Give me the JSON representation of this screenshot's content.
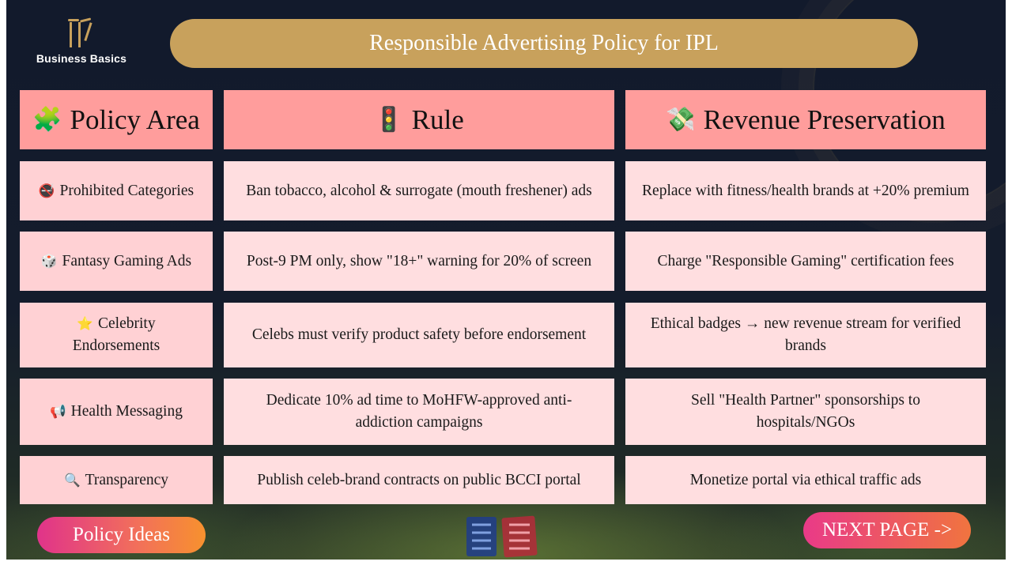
{
  "brand": {
    "name": "Business Basics",
    "icon": "cricket-stumps-logo",
    "color": "#c8a15c"
  },
  "title": "Responsible Advertising Policy for IPL",
  "headers": [
    {
      "emoji": "🧩",
      "icon": "puzzle-icon",
      "label": "Policy Area"
    },
    {
      "emoji": "🚦",
      "icon": "traffic-light-icon",
      "label": "Rule"
    },
    {
      "emoji": "💸",
      "icon": "money-wings-icon",
      "label": "Revenue Preservation"
    }
  ],
  "rows": [
    {
      "emoji": "🚭",
      "icon": "no-smoking-icon",
      "area": "Prohibited Categories",
      "rule": "Ban tobacco, alcohol & surrogate (mouth freshener) ads",
      "revenue": "Replace with fitness/health brands at +20% premium"
    },
    {
      "emoji": "🎲",
      "icon": "dice-icon",
      "area": "Fantasy Gaming Ads",
      "rule": "Post-9 PM only, show \"18+\" warning for 20% of screen",
      "revenue": "Charge \"Responsible Gaming\" certification fees"
    },
    {
      "emoji": "⭐",
      "icon": "star-icon",
      "area": "Celebrity Endorsements",
      "rule": "Celebs must verify product safety before endorsement",
      "revenue": "Ethical badges → new revenue stream for verified brands"
    },
    {
      "emoji": "📢",
      "icon": "megaphone-icon",
      "area": "Health Messaging",
      "rule": "Dedicate 10% ad time to MoHFW-approved anti-addiction campaigns",
      "revenue": "Sell \"Health Partner\" sponsorships to hospitals/NGOs"
    },
    {
      "emoji": "🔍",
      "icon": "magnifier-icon",
      "area": "Transparency",
      "rule": "Publish celeb-brand contracts on public BCCI portal",
      "revenue": "Monetize portal via ethical traffic ads"
    }
  ],
  "buttons": {
    "left": "Policy Ideas",
    "right": "NEXT PAGE ->"
  },
  "colors": {
    "header": "#ff9d9c",
    "cell": "#ffdee0",
    "area_cell": "#ffd1d4",
    "title_bar": "#c8a15c",
    "background": "#131b2c"
  }
}
